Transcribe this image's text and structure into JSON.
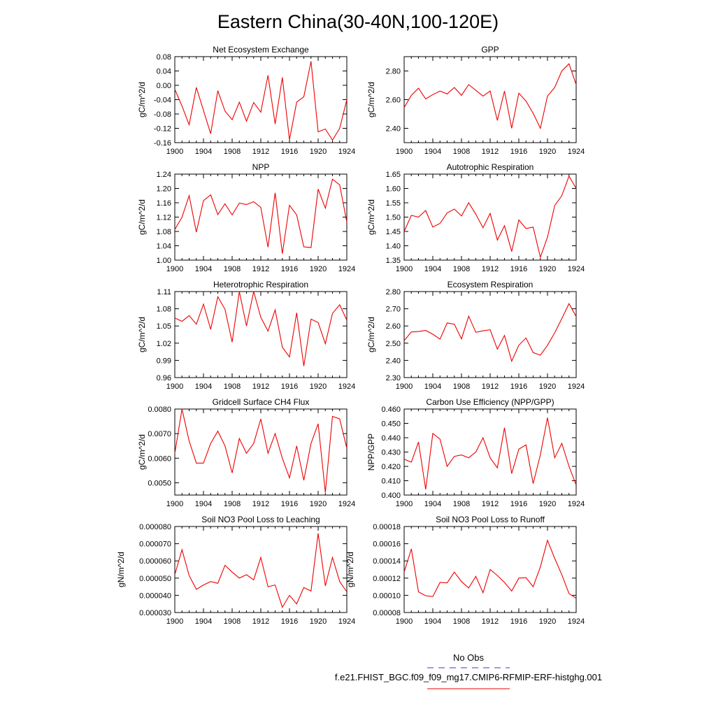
{
  "title": "Eastern China(30-40N,100-120E)",
  "legend": {
    "entries": [
      {
        "label": "No Obs",
        "color": "#3333ee",
        "dash": "dashed"
      },
      {
        "label": "f.e21.FHIST_BGC.f09_f09_mg17.CMIP6-RFMIP-ERF-histghg.001",
        "color": "#ee0000",
        "dash": "solid"
      }
    ]
  },
  "colors": {
    "series": "#ee0000"
  },
  "chart_data": [
    {
      "type": "line",
      "title": "Net Ecosystem Exchange",
      "ylabel": "gC/m^2/d",
      "xlim": [
        1900,
        1924
      ],
      "ylim": [
        -0.16,
        0.08
      ],
      "xticks": [
        "1900",
        "1904",
        "1908",
        "1912",
        "1916",
        "1920",
        "1924"
      ],
      "yticks": [
        "-0.16",
        "-0.12",
        "-0.08",
        "-0.04",
        "0.00",
        "0.04",
        "0.08"
      ],
      "x": [
        1900,
        1901,
        1902,
        1903,
        1904,
        1905,
        1906,
        1907,
        1908,
        1909,
        1910,
        1911,
        1912,
        1913,
        1914,
        1915,
        1916,
        1917,
        1918,
        1919,
        1920,
        1921,
        1922,
        1923,
        1924
      ],
      "values": [
        -0.011,
        -0.058,
        -0.11,
        -0.006,
        -0.07,
        -0.135,
        -0.015,
        -0.072,
        -0.096,
        -0.047,
        -0.1,
        -0.048,
        -0.075,
        0.028,
        -0.108,
        0.022,
        -0.152,
        -0.047,
        -0.032,
        0.067,
        -0.13,
        -0.122,
        -0.153,
        -0.12,
        -0.04
      ]
    },
    {
      "type": "line",
      "title": "GPP",
      "ylabel": "gC/m^2/d",
      "xlim": [
        1900,
        1924
      ],
      "ylim": [
        2.3,
        2.9
      ],
      "xticks": [
        "1900",
        "1904",
        "1908",
        "1912",
        "1916",
        "1920",
        "1924"
      ],
      "yticks": [
        "2.40",
        "2.60",
        "2.80"
      ],
      "x": [
        1900,
        1901,
        1902,
        1903,
        1904,
        1905,
        1906,
        1907,
        1908,
        1909,
        1910,
        1911,
        1912,
        1913,
        1914,
        1915,
        1916,
        1917,
        1918,
        1919,
        1920,
        1921,
        1922,
        1923,
        1924
      ],
      "values": [
        2.545,
        2.63,
        2.68,
        2.605,
        2.635,
        2.66,
        2.64,
        2.685,
        2.63,
        2.705,
        2.665,
        2.625,
        2.66,
        2.455,
        2.66,
        2.4,
        2.645,
        2.59,
        2.505,
        2.4,
        2.625,
        2.685,
        2.8,
        2.85,
        2.705
      ]
    },
    {
      "type": "line",
      "title": "NPP",
      "ylabel": "gC/m^2/d",
      "xlim": [
        1900,
        1924
      ],
      "ylim": [
        1.0,
        1.24
      ],
      "xticks": [
        "1900",
        "1904",
        "1908",
        "1912",
        "1916",
        "1920",
        "1924"
      ],
      "yticks": [
        "1.00",
        "1.04",
        "1.08",
        "1.12",
        "1.16",
        "1.20",
        "1.24"
      ],
      "x": [
        1900,
        1901,
        1902,
        1903,
        1904,
        1905,
        1906,
        1907,
        1908,
        1909,
        1910,
        1911,
        1912,
        1913,
        1914,
        1915,
        1916,
        1917,
        1918,
        1919,
        1920,
        1921,
        1922,
        1923,
        1924
      ],
      "values": [
        1.085,
        1.12,
        1.18,
        1.078,
        1.166,
        1.182,
        1.127,
        1.157,
        1.126,
        1.159,
        1.155,
        1.163,
        1.147,
        1.036,
        1.188,
        1.018,
        1.153,
        1.126,
        1.037,
        1.035,
        1.198,
        1.145,
        1.226,
        1.21,
        1.106
      ]
    },
    {
      "type": "line",
      "title": "Autotrophic Respiration",
      "ylabel": "gC/m^2/d",
      "xlim": [
        1900,
        1924
      ],
      "ylim": [
        1.35,
        1.65
      ],
      "xticks": [
        "1900",
        "1904",
        "1908",
        "1912",
        "1916",
        "1920",
        "1924"
      ],
      "yticks": [
        "1.35",
        "1.40",
        "1.45",
        "1.50",
        "1.55",
        "1.60",
        "1.65"
      ],
      "x": [
        1900,
        1901,
        1902,
        1903,
        1904,
        1905,
        1906,
        1907,
        1908,
        1909,
        1910,
        1911,
        1912,
        1913,
        1914,
        1915,
        1916,
        1917,
        1918,
        1919,
        1920,
        1921,
        1922,
        1923,
        1924
      ],
      "values": [
        1.45,
        1.506,
        1.5,
        1.523,
        1.465,
        1.478,
        1.515,
        1.528,
        1.504,
        1.55,
        1.51,
        1.463,
        1.513,
        1.42,
        1.47,
        1.38,
        1.49,
        1.46,
        1.465,
        1.36,
        1.43,
        1.54,
        1.575,
        1.643,
        1.6
      ]
    },
    {
      "type": "line",
      "title": "Heterotrophic Respiration",
      "ylabel": "gC/m^2/d",
      "xlim": [
        1900,
        1924
      ],
      "ylim": [
        0.96,
        1.11
      ],
      "xticks": [
        "1900",
        "1904",
        "1908",
        "1912",
        "1916",
        "1920",
        "1924"
      ],
      "yticks": [
        "0.96",
        "0.99",
        "1.02",
        "1.05",
        "1.08",
        "1.11"
      ],
      "x": [
        1900,
        1901,
        1902,
        1903,
        1904,
        1905,
        1906,
        1907,
        1908,
        1909,
        1910,
        1911,
        1912,
        1913,
        1914,
        1915,
        1916,
        1917,
        1918,
        1919,
        1920,
        1921,
        1922,
        1923,
        1924
      ],
      "values": [
        1.064,
        1.058,
        1.068,
        1.053,
        1.088,
        1.044,
        1.101,
        1.079,
        1.022,
        1.11,
        1.05,
        1.11,
        1.065,
        1.041,
        1.078,
        1.013,
        0.996,
        1.073,
        0.98,
        1.062,
        1.056,
        1.019,
        1.072,
        1.087,
        1.06
      ]
    },
    {
      "type": "line",
      "title": "Ecosystem Respiration",
      "ylabel": "gC/m^2/d",
      "xlim": [
        1900,
        1924
      ],
      "ylim": [
        2.3,
        2.8
      ],
      "xticks": [
        "1900",
        "1904",
        "1908",
        "1912",
        "1916",
        "1920",
        "1924"
      ],
      "yticks": [
        "2.30",
        "2.40",
        "2.50",
        "2.60",
        "2.70",
        "2.80"
      ],
      "x": [
        1900,
        1901,
        1902,
        1903,
        1904,
        1905,
        1906,
        1907,
        1908,
        1909,
        1910,
        1911,
        1912,
        1913,
        1914,
        1915,
        1916,
        1917,
        1918,
        1919,
        1920,
        1921,
        1922,
        1923,
        1924
      ],
      "values": [
        2.515,
        2.565,
        2.568,
        2.574,
        2.552,
        2.523,
        2.618,
        2.61,
        2.525,
        2.657,
        2.563,
        2.572,
        2.578,
        2.465,
        2.545,
        2.395,
        2.488,
        2.53,
        2.445,
        2.43,
        2.488,
        2.56,
        2.643,
        2.73,
        2.655
      ]
    },
    {
      "type": "line",
      "title": "Gridcell Surface CH4 Flux",
      "ylabel": "gC/m^2/d",
      "xlim": [
        1900,
        1924
      ],
      "ylim": [
        0.0045,
        0.008
      ],
      "xticks": [
        "1900",
        "1904",
        "1908",
        "1912",
        "1916",
        "1920",
        "1924"
      ],
      "yticks": [
        "0.0050",
        "0.0060",
        "0.0070",
        "0.0080"
      ],
      "x": [
        1900,
        1901,
        1902,
        1903,
        1904,
        1905,
        1906,
        1907,
        1908,
        1909,
        1910,
        1911,
        1912,
        1913,
        1914,
        1915,
        1916,
        1917,
        1918,
        1919,
        1920,
        1921,
        1922,
        1923,
        1924
      ],
      "values": [
        0.0062,
        0.008,
        0.0067,
        0.0058,
        0.0058,
        0.0066,
        0.0071,
        0.0065,
        0.0054,
        0.0068,
        0.0062,
        0.0066,
        0.0076,
        0.0062,
        0.007,
        0.006,
        0.0052,
        0.0065,
        0.0051,
        0.0066,
        0.0074,
        0.0046,
        0.0077,
        0.0076,
        0.0064
      ]
    },
    {
      "type": "line",
      "title": "Carbon Use Efficiency (NPP/GPP)",
      "ylabel": "NPP/GPP",
      "xlim": [
        1900,
        1924
      ],
      "ylim": [
        0.4,
        0.46
      ],
      "xticks": [
        "1900",
        "1904",
        "1908",
        "1912",
        "1916",
        "1920",
        "1924"
      ],
      "yticks": [
        "0.400",
        "0.410",
        "0.420",
        "0.430",
        "0.440",
        "0.450",
        "0.460"
      ],
      "x": [
        1900,
        1901,
        1902,
        1903,
        1904,
        1905,
        1906,
        1907,
        1908,
        1909,
        1910,
        1911,
        1912,
        1913,
        1914,
        1915,
        1916,
        1917,
        1918,
        1919,
        1920,
        1921,
        1922,
        1923,
        1924
      ],
      "values": [
        0.425,
        0.423,
        0.437,
        0.404,
        0.443,
        0.439,
        0.42,
        0.427,
        0.428,
        0.426,
        0.43,
        0.44,
        0.426,
        0.419,
        0.447,
        0.415,
        0.432,
        0.435,
        0.408,
        0.428,
        0.454,
        0.426,
        0.436,
        0.42,
        0.407
      ]
    },
    {
      "type": "line",
      "title": "Soil NO3 Pool Loss to Leaching",
      "ylabel": "gN/m^2/d",
      "xlim": [
        1900,
        1924
      ],
      "ylim": [
        3e-05,
        8e-05
      ],
      "xticks": [
        "1900",
        "1904",
        "1908",
        "1912",
        "1916",
        "1920",
        "1924"
      ],
      "yticks": [
        "0.000030",
        "0.000040",
        "0.000050",
        "0.000060",
        "0.000070",
        "0.000080"
      ],
      "x": [
        1900,
        1901,
        1902,
        1903,
        1904,
        1905,
        1906,
        1907,
        1908,
        1909,
        1910,
        1911,
        1912,
        1913,
        1914,
        1915,
        1916,
        1917,
        1918,
        1919,
        1920,
        1921,
        1922,
        1923,
        1924
      ],
      "values": [
        5.2e-05,
        6.65e-05,
        5.15e-05,
        4.35e-05,
        4.6e-05,
        4.8e-05,
        4.7e-05,
        5.75e-05,
        5.35e-05,
        5e-05,
        5.2e-05,
        4.9e-05,
        6.2e-05,
        4.5e-05,
        4.6e-05,
        3.3e-05,
        4e-05,
        3.5e-05,
        4.45e-05,
        4.25e-05,
        7.6e-05,
        4.55e-05,
        6.2e-05,
        4.8e-05,
        4.2e-05
      ]
    },
    {
      "type": "line",
      "title": "Soil NO3 Pool Loss to Runoff",
      "ylabel": "gN/m^2/d",
      "xlim": [
        1900,
        1924
      ],
      "ylim": [
        8e-05,
        0.00018
      ],
      "xticks": [
        "1900",
        "1904",
        "1908",
        "1912",
        "1916",
        "1920",
        "1924"
      ],
      "yticks": [
        "0.00008",
        "0.00010",
        "0.00012",
        "0.00014",
        "0.00016",
        "0.00018"
      ],
      "x": [
        1900,
        1901,
        1902,
        1903,
        1904,
        1905,
        1906,
        1907,
        1908,
        1909,
        1910,
        1911,
        1912,
        1913,
        1914,
        1915,
        1916,
        1917,
        1918,
        1919,
        1920,
        1921,
        1922,
        1923,
        1924
      ],
      "values": [
        0.000127,
        0.000154,
        0.000104,
        9.95e-05,
        9.85e-05,
        0.000115,
        0.0001145,
        0.000127,
        0.000116,
        0.0001085,
        0.000122,
        0.000103,
        0.00013,
        0.000123,
        0.000115,
        0.000105,
        0.00012,
        0.0001205,
        0.00011,
        0.000133,
        0.000164,
        0.000143,
        0.000124,
        0.000102,
        9.65e-05
      ]
    }
  ]
}
